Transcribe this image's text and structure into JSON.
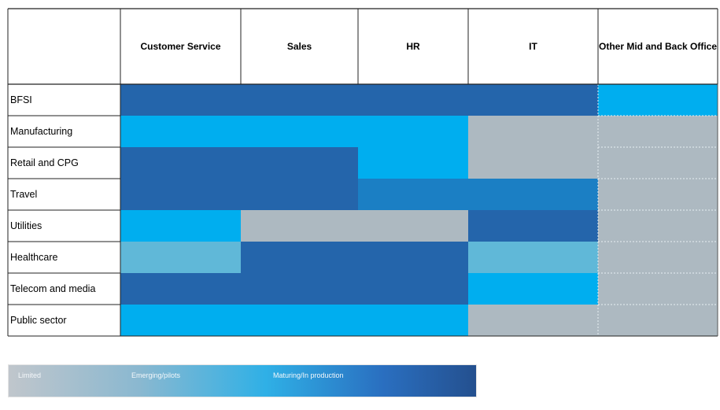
{
  "chart_data": {
    "type": "heatmap",
    "columns": [
      "Customer Service",
      "Sales",
      "HR",
      "IT",
      "Other Mid and Back Office"
    ],
    "rows": [
      "BFSI",
      "Manufacturing",
      "Retail and  CPG",
      "Travel",
      "Utilities",
      "Healthcare",
      "Telecom and media",
      "Public sector"
    ],
    "levels": {
      "limited": "#adb9c1",
      "emerging": "#60b8d8",
      "mid": "#00aeef",
      "adv": "#1b7fc4",
      "mature": "#2465ab"
    },
    "cells": [
      [
        "mature",
        "mature",
        "mature",
        "mature",
        "mid"
      ],
      [
        "mid",
        "mid",
        "mid",
        "limited",
        "limited"
      ],
      [
        "mature",
        "mature",
        "mid",
        "limited",
        "limited"
      ],
      [
        "mature",
        "mature",
        "adv",
        "adv",
        "limited"
      ],
      [
        "mid",
        "limited",
        "limited",
        "mature",
        "limited"
      ],
      [
        "emerging",
        "mature",
        "mature",
        "emerging",
        "limited"
      ],
      [
        "mature",
        "mature",
        "mature",
        "mid",
        "limited"
      ],
      [
        "mid",
        "mid",
        "mid",
        "limited",
        "limited"
      ]
    ],
    "legend": [
      "Limited",
      "Emerging/pilots",
      "Maturing/In production"
    ]
  }
}
